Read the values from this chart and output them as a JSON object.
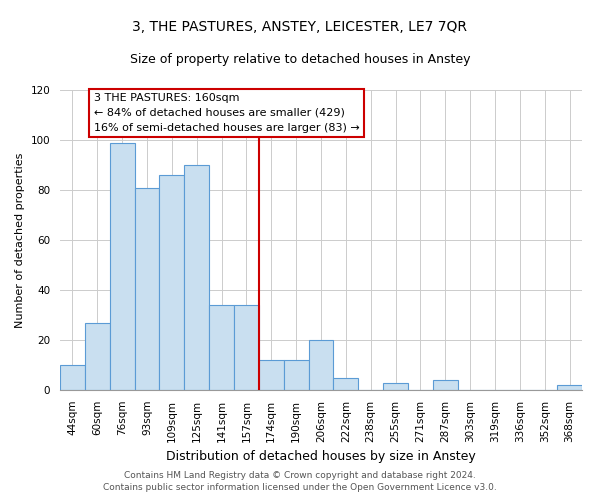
{
  "title": "3, THE PASTURES, ANSTEY, LEICESTER, LE7 7QR",
  "subtitle": "Size of property relative to detached houses in Anstey",
  "xlabel": "Distribution of detached houses by size in Anstey",
  "ylabel": "Number of detached properties",
  "bar_labels": [
    "44sqm",
    "60sqm",
    "76sqm",
    "93sqm",
    "109sqm",
    "125sqm",
    "141sqm",
    "157sqm",
    "174sqm",
    "190sqm",
    "206sqm",
    "222sqm",
    "238sqm",
    "255sqm",
    "271sqm",
    "287sqm",
    "303sqm",
    "319sqm",
    "336sqm",
    "352sqm",
    "368sqm"
  ],
  "bar_values": [
    10,
    27,
    99,
    81,
    86,
    90,
    34,
    34,
    12,
    12,
    20,
    5,
    0,
    3,
    0,
    4,
    0,
    0,
    0,
    0,
    2
  ],
  "bar_color": "#c9dff0",
  "bar_edge_color": "#5b9bd5",
  "vline_index": 7,
  "vline_color": "#cc0000",
  "annotation_title": "3 THE PASTURES: 160sqm",
  "annotation_line1": "← 84% of detached houses are smaller (429)",
  "annotation_line2": "16% of semi-detached houses are larger (83) →",
  "ylim": [
    0,
    120
  ],
  "yticks": [
    0,
    20,
    40,
    60,
    80,
    100,
    120
  ],
  "footer_line1": "Contains HM Land Registry data © Crown copyright and database right 2024.",
  "footer_line2": "Contains public sector information licensed under the Open Government Licence v3.0.",
  "bg_color": "#ffffff",
  "grid_color": "#cccccc",
  "title_fontsize": 10,
  "subtitle_fontsize": 9,
  "ylabel_fontsize": 8,
  "xlabel_fontsize": 9,
  "tick_fontsize": 7.5,
  "annot_fontsize": 8,
  "footer_fontsize": 6.5
}
